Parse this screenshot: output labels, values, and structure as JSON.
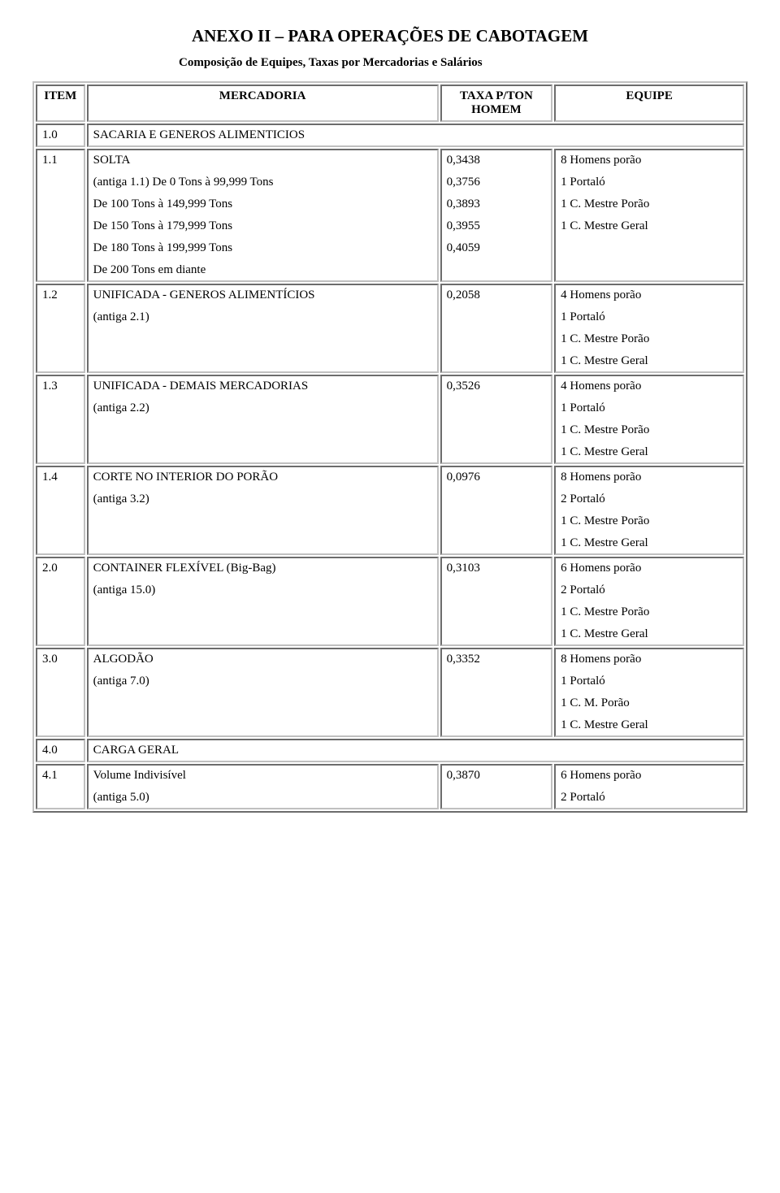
{
  "title": "ANEXO II – PARA OPERAÇÕES DE CABOTAGEM",
  "subtitle": "Composição de Equipes, Taxas por Mercadorias e Salários",
  "headers": {
    "item": "ITEM",
    "mercadoria": "MERCADORIA",
    "taxa": "TAXA P/TON HOMEM",
    "equipe": "EQUIPE"
  },
  "rows": {
    "r1_0": {
      "item": "1.0",
      "merc": "SACARIA E GENEROS ALIMENTICIOS"
    },
    "r1_1": {
      "item": "1.1",
      "merc_lines": [
        "SOLTA",
        "(antiga 1.1) De 0 Tons à 99,999 Tons",
        "De 100 Tons à 149,999 Tons",
        "De 150 Tons à 179,999 Tons",
        "De 180 Tons à 199,999 Tons",
        "De 200 Tons em diante"
      ],
      "taxa_lines": [
        "0,3438",
        "0,3756",
        "0,3893",
        "0,3955",
        "0,4059"
      ],
      "equipe_lines": [
        "8 Homens porão",
        "1 Portaló",
        "1 C. Mestre Porão",
        "1 C. Mestre Geral"
      ]
    },
    "r1_2": {
      "item": "1.2",
      "merc_lines": [
        "UNIFICADA - GENEROS ALIMENTÍCIOS",
        "(antiga 2.1)"
      ],
      "taxa": "0,2058",
      "equipe_lines": [
        "4 Homens porão",
        "1 Portaló",
        "1 C. Mestre Porão",
        "1 C. Mestre Geral"
      ]
    },
    "r1_3": {
      "item": "1.3",
      "merc_lines": [
        "UNIFICADA - DEMAIS MERCADORIAS",
        "(antiga 2.2)"
      ],
      "taxa": "0,3526",
      "equipe_lines": [
        "4 Homens porão",
        "1 Portaló",
        "1 C. Mestre Porão",
        "1 C. Mestre Geral"
      ]
    },
    "r1_4": {
      "item": "1.4",
      "merc_lines": [
        "CORTE NO INTERIOR DO PORÃO",
        "(antiga 3.2)"
      ],
      "taxa": "0,0976",
      "equipe_lines": [
        "8 Homens porão",
        "2 Portaló",
        "1 C. Mestre Porão",
        "1 C. Mestre Geral"
      ]
    },
    "r2_0": {
      "item": "2.0",
      "merc_lines": [
        "CONTAINER FLEXÍVEL (Big-Bag)",
        "(antiga 15.0)"
      ],
      "taxa": "0,3103",
      "equipe_lines": [
        "6 Homens porão",
        "2 Portaló",
        "1 C. Mestre Porão",
        "1 C. Mestre Geral"
      ]
    },
    "r3_0": {
      "item": "3.0",
      "merc_lines": [
        "ALGODÃO",
        "(antiga 7.0)"
      ],
      "taxa": "0,3352",
      "equipe_lines": [
        "8 Homens porão",
        "1 Portaló",
        "1 C. M. Porão",
        "1 C. Mestre Geral"
      ]
    },
    "r4_0": {
      "item": "4.0",
      "merc": "CARGA GERAL"
    },
    "r4_1": {
      "item": "4.1",
      "merc_lines": [
        "Volume Indivisível",
        "(antiga 5.0)"
      ],
      "taxa": "0,3870",
      "equipe_lines": [
        "6 Homens porão",
        "2 Portaló"
      ]
    }
  }
}
